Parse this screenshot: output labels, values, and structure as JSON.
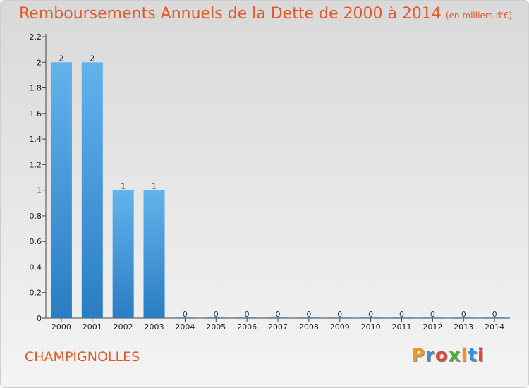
{
  "header": {
    "title": "Remboursements Annuels de la Dette de 2000 à 2014",
    "unit": "(en milliers d'€)"
  },
  "footer": {
    "commune": "CHAMPIGNOLLES",
    "logo": "Proxiti"
  },
  "colors": {
    "accent": "#e05a2b",
    "bar_top": "#62b3ec",
    "bar_bottom": "#2a7dc3",
    "logo_letters": [
      "#f39a1e",
      "#3b8ed9",
      "#e8412f",
      "#4caf3f",
      "#f39a1e",
      "#3b8ed9",
      "#e8412f"
    ]
  },
  "chart_data": {
    "type": "bar",
    "title": "Remboursements Annuels de la Dette de 2000 à 2014",
    "xlabel": "",
    "ylabel": "",
    "categories": [
      "2000",
      "2001",
      "2002",
      "2003",
      "2004",
      "2005",
      "2006",
      "2007",
      "2008",
      "2009",
      "2010",
      "2011",
      "2012",
      "2013",
      "2014"
    ],
    "values": [
      2,
      2,
      1,
      1,
      0,
      0,
      0,
      0,
      0,
      0,
      0,
      0,
      0,
      0,
      0
    ],
    "value_labels": [
      "2",
      "2",
      "1",
      "1",
      "0",
      "0",
      "0",
      "0",
      "0",
      "0",
      "0",
      "0",
      "0",
      "0",
      "0"
    ],
    "ylim": [
      0,
      2.2
    ],
    "yticks": [
      "0",
      "0.2",
      "0.4",
      "0.6",
      "0.8",
      "1",
      "1.2",
      "1.4",
      "1.6",
      "1.8",
      "2",
      "2.2"
    ],
    "ytick_values": [
      0,
      0.2,
      0.4,
      0.6,
      0.8,
      1,
      1.2,
      1.4,
      1.6,
      1.8,
      2,
      2.2
    ],
    "grid": false,
    "legend": "none"
  }
}
